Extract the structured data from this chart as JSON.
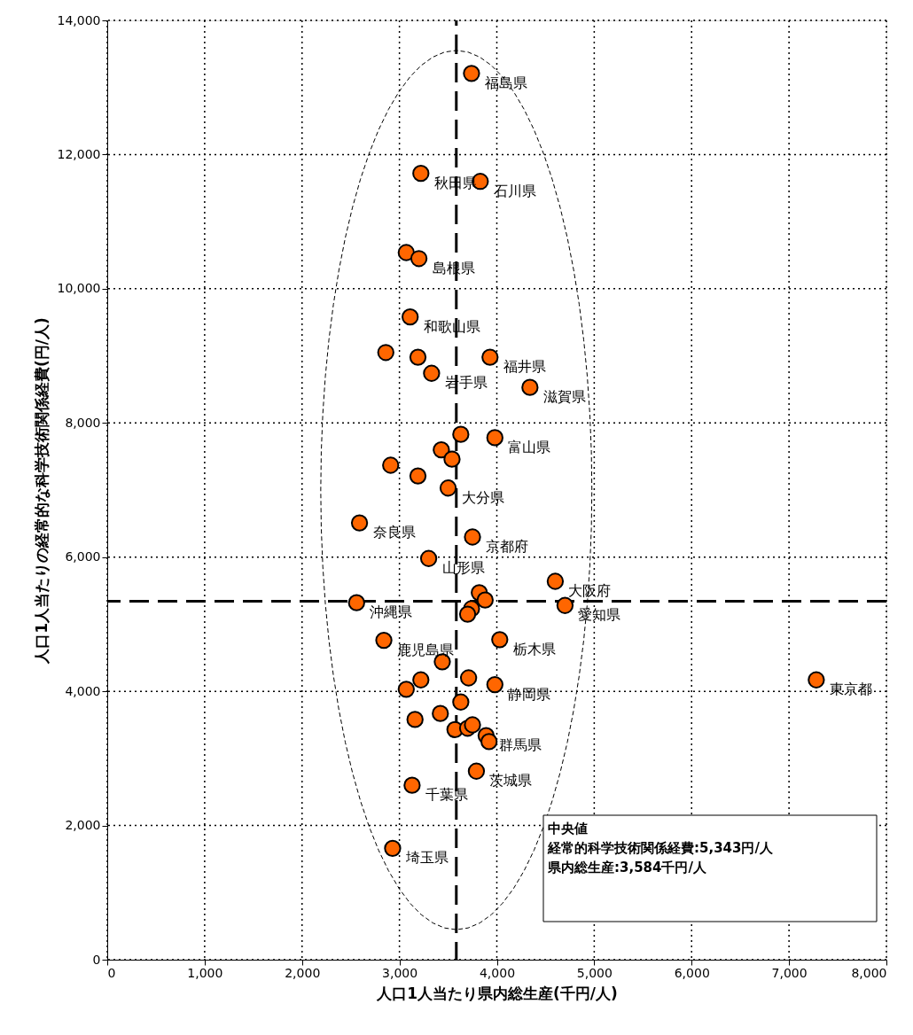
{
  "chart_data": {
    "type": "scatter",
    "xlabel": "人口1人当たり県内総生産(千円/人)",
    "ylabel": "人口1人当たりの経常的な科学技術関係経費(円/人)",
    "xlim": [
      0,
      8000
    ],
    "xticks": [
      {
        "value": 0,
        "label": "0"
      },
      {
        "value": 1000,
        "label": "1,000"
      },
      {
        "value": 2000,
        "label": "2,000"
      },
      {
        "value": 3000,
        "label": "3,000"
      },
      {
        "value": 4000,
        "label": "4,000"
      },
      {
        "value": 5000,
        "label": "5,000"
      },
      {
        "value": 6000,
        "label": "6,000"
      },
      {
        "value": 7000,
        "label": "7,000"
      },
      {
        "value": 8000,
        "label": "8,000"
      }
    ],
    "ylim": [
      0,
      14000
    ],
    "yticks": [
      {
        "value": 0,
        "label": "0"
      },
      {
        "value": 2000,
        "label": "2,000"
      },
      {
        "value": 4000,
        "label": "4,000"
      },
      {
        "value": 6000,
        "label": "6,000"
      },
      {
        "value": 8000,
        "label": "8,000"
      },
      {
        "value": 10000,
        "label": "10,000"
      },
      {
        "value": 12000,
        "label": "12,000"
      },
      {
        "value": 14000,
        "label": "14,000"
      }
    ],
    "grid": true,
    "series": [
      {
        "marker": "circle",
        "color": "#ff6600",
        "x": [
          3740,
          3220,
          3830,
          3070,
          3200,
          3110,
          2860,
          3190,
          3330,
          3930,
          4340,
          3630,
          3980,
          3430,
          3540,
          2910,
          3190,
          3500,
          2590,
          3750,
          3300,
          4600,
          3820,
          3880,
          3740,
          3700,
          4700,
          2560,
          2840,
          4030,
          3440,
          3220,
          3070,
          3710,
          3980,
          3630,
          3420,
          3160,
          3570,
          3700,
          3750,
          3890,
          3920,
          3790,
          3130,
          2930,
          7280
        ],
        "values": [
          13210,
          11720,
          11600,
          10540,
          10450,
          9580,
          9050,
          8980,
          8740,
          8980,
          8530,
          7830,
          7780,
          7600,
          7460,
          7370,
          7210,
          7030,
          6510,
          6300,
          5980,
          5640,
          5470,
          5360,
          5230,
          5150,
          5280,
          5320,
          4760,
          4770,
          4440,
          4170,
          4030,
          4200,
          4100,
          3840,
          3670,
          3580,
          3430,
          3450,
          3500,
          3340,
          3250,
          2810,
          2600,
          1660,
          4170
        ]
      }
    ],
    "ref_lines": [
      {
        "axis": "x",
        "value": 3584,
        "line_style": "dashed",
        "color": "#000000"
      },
      {
        "axis": "y",
        "value": 5343,
        "line_style": "dashed",
        "color": "#000000"
      }
    ],
    "annotations": [
      {
        "text": "福島県",
        "x": 3740,
        "y": 13210
      },
      {
        "text": "秋田県",
        "x": 3220,
        "y": 11720
      },
      {
        "text": "石川県",
        "x": 3830,
        "y": 11600
      },
      {
        "text": "島根県",
        "x": 3200,
        "y": 10450
      },
      {
        "text": "和歌山県",
        "x": 3110,
        "y": 9580
      },
      {
        "text": "岩手県",
        "x": 3330,
        "y": 8740
      },
      {
        "text": "福井県",
        "x": 3930,
        "y": 8980
      },
      {
        "text": "滋賀県",
        "x": 4340,
        "y": 8530
      },
      {
        "text": "富山県",
        "x": 3980,
        "y": 7780
      },
      {
        "text": "大分県",
        "x": 3500,
        "y": 7030
      },
      {
        "text": "奈良県",
        "x": 2590,
        "y": 6510
      },
      {
        "text": "京都府",
        "x": 3750,
        "y": 6300
      },
      {
        "text": "山形県",
        "x": 3300,
        "y": 5980
      },
      {
        "text": "大阪府",
        "x": 4600,
        "y": 5640
      },
      {
        "text": "愛知県",
        "x": 4700,
        "y": 5280
      },
      {
        "text": "沖縄県",
        "x": 2560,
        "y": 5320
      },
      {
        "text": "鹿児島県",
        "x": 2840,
        "y": 4760
      },
      {
        "text": "栃木県",
        "x": 4030,
        "y": 4770
      },
      {
        "text": "静岡県",
        "x": 3980,
        "y": 4100
      },
      {
        "text": "群馬県",
        "x": 3890,
        "y": 3340
      },
      {
        "text": "茨城県",
        "x": 3790,
        "y": 2810
      },
      {
        "text": "千葉県",
        "x": 3130,
        "y": 2600
      },
      {
        "text": "埼玉県",
        "x": 2930,
        "y": 1660
      },
      {
        "text": "東京都",
        "x": 7280,
        "y": 4170
      },
      "中央値",
      "経常的科学技術関係経費:5,343円/人",
      "県内総生産:3,584千円/人"
    ]
  }
}
